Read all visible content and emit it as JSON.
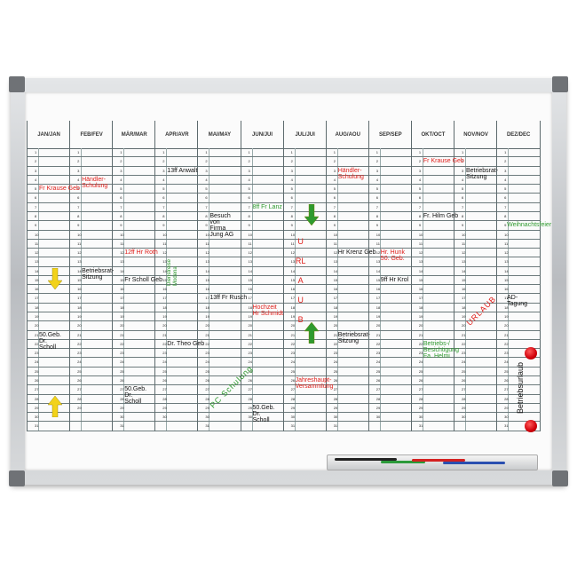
{
  "planner": {
    "months": [
      "JAN/JAN",
      "FEB/FEV",
      "MÄR/MAR",
      "APR/AVR",
      "MAI/MAY",
      "JUN/JUI",
      "JUL/JUI",
      "AUG/AOU",
      "SEP/SEP",
      "OKT/OCT",
      "NOV/NOV",
      "DEZ/DEC"
    ],
    "days_in_month": [
      31,
      29,
      31,
      30,
      31,
      30,
      31,
      31,
      30,
      31,
      30,
      31
    ],
    "notes": [
      {
        "month": 1,
        "day": 5,
        "text": "Fr Krause Geb",
        "color": "#e0201c"
      },
      {
        "month": 2,
        "day": 4,
        "text": "Händler-\nSchulung",
        "color": "#e0201c"
      },
      {
        "month": 4,
        "day": 3,
        "text": "13ff Anwalt",
        "color": "#111111"
      },
      {
        "month": 5,
        "day": 8,
        "text": "Besuch\nvon\nFirma\nJung AG",
        "color": "#111111"
      },
      {
        "month": 6,
        "day": 7,
        "text": "8ff Fr Lanz",
        "color": "#2e9a2e"
      },
      {
        "month": 3,
        "day": 12,
        "text": "12ff Hr Roth",
        "color": "#e0201c"
      },
      {
        "month": 4,
        "day": 16,
        "text": "Dienstreise\nModena",
        "color": "#2e9a2e",
        "orientation": "rotated"
      },
      {
        "month": 2,
        "day": 14,
        "text": "Betriebsrat-\nSitzung",
        "color": "#111111"
      },
      {
        "month": 3,
        "day": 15,
        "text": "Fr Scholl Geb",
        "color": "#111111"
      },
      {
        "month": 5,
        "day": 17,
        "text": "13ff Fr Rusch",
        "color": "#111111"
      },
      {
        "month": 6,
        "day": 18,
        "text": "Hochzeit\nHr Schmidt",
        "color": "#e0201c"
      },
      {
        "month": 1,
        "day": 21,
        "text": "50.Geb.\nDr.\nScholl",
        "color": "#111111"
      },
      {
        "month": 4,
        "day": 22,
        "text": "Dr. Theo Geb",
        "color": "#111111"
      },
      {
        "month": 5,
        "day": 29,
        "text": "PC Schulung",
        "color": "#2e9a2e",
        "orientation": "diagonal"
      },
      {
        "month": 3,
        "day": 27,
        "text": "50.Geb.\nDr.\nScholl",
        "color": "#111111"
      },
      {
        "month": 6,
        "day": 29,
        "text": "50.Geb.\nDr.\nScholl",
        "color": "#111111"
      },
      {
        "month": 7,
        "day": 10,
        "text": "URLAUB",
        "color": "#e0201c",
        "orientation": "vertical"
      },
      {
        "month": 8,
        "day": 3,
        "text": "Händler-\nSchulung",
        "color": "#e0201c"
      },
      {
        "month": 8,
        "day": 12,
        "text": "Hr Krenz Geb",
        "color": "#111111"
      },
      {
        "month": 9,
        "day": 12,
        "text": "Hr. Hunk\n50. Geb.",
        "color": "#e0201c"
      },
      {
        "month": 9,
        "day": 15,
        "text": "9ff Hr Krol",
        "color": "#111111"
      },
      {
        "month": 8,
        "day": 21,
        "text": "Betriebsrat-\nSitzung",
        "color": "#111111"
      },
      {
        "month": 7,
        "day": 26,
        "text": "Jahreshaupt-\nVersammlung",
        "color": "#e0201c"
      },
      {
        "month": 10,
        "day": 2,
        "text": "Fr Krause Geb",
        "color": "#e0201c"
      },
      {
        "month": 10,
        "day": 8,
        "text": "Fr. Hilm Geb",
        "color": "#111111"
      },
      {
        "month": 10,
        "day": 22,
        "text": "Betriebs-/\nBesichtigung\nFa. Helmi",
        "color": "#2e9a2e"
      },
      {
        "month": 11,
        "day": 3,
        "text": "Betriebsrat-\nSitzung",
        "color": "#111111"
      },
      {
        "month": 11,
        "day": 20,
        "text": "URLAUB",
        "color": "#e0201c",
        "orientation": "diagonal"
      },
      {
        "month": 12,
        "day": 9,
        "text": "Weihnachtsfeier",
        "color": "#2e9a2e"
      },
      {
        "month": 12,
        "day": 17,
        "text": "AD-\nTagung",
        "color": "#111111"
      },
      {
        "month": 12,
        "day": 30,
        "text": "Betriebsurlaub",
        "color": "#111111",
        "orientation": "rotated"
      }
    ],
    "markers": [
      {
        "type": "yellow-arrow-down",
        "month": 1,
        "day": 14
      },
      {
        "type": "yellow-arrow-up",
        "month": 1,
        "day": 28
      },
      {
        "type": "green-arrow-down",
        "month": 7,
        "day": 7
      },
      {
        "type": "green-arrow-up",
        "month": 7,
        "day": 20
      },
      {
        "type": "red-magnet",
        "month": 12,
        "day": 23
      },
      {
        "type": "red-magnet",
        "month": 12,
        "day": 31
      }
    ]
  },
  "colors": {
    "red": "#e0201c",
    "green": "#2e9a2e",
    "yellow": "#f2d21a",
    "frame": "#c4c7ca"
  }
}
